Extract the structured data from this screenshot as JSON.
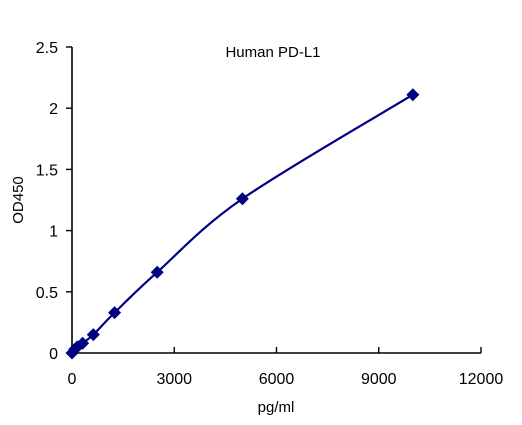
{
  "chart_data": {
    "type": "scatter",
    "title": "Human  PD-L1",
    "xlabel": "pg/ml",
    "ylabel": "OD450",
    "xlim": [
      0,
      12000
    ],
    "ylim": [
      0,
      2.5
    ],
    "x_ticks": [
      "0",
      "3000",
      "6000",
      "9000",
      "12000"
    ],
    "y_ticks": [
      "0",
      "0.5",
      "1",
      "1.5",
      "2",
      "2.5"
    ],
    "grid": false,
    "legend": "none",
    "series": [
      {
        "points": [
          {
            "x": 0,
            "y": 0.0
          },
          {
            "x": 78,
            "y": 0.03
          },
          {
            "x": 156,
            "y": 0.05
          },
          {
            "x": 312,
            "y": 0.08
          },
          {
            "x": 625,
            "y": 0.15
          },
          {
            "x": 1250,
            "y": 0.33
          },
          {
            "x": 2500,
            "y": 0.66
          },
          {
            "x": 5000,
            "y": 1.26
          },
          {
            "x": 10000,
            "y": 2.11
          }
        ],
        "marker": "diamond",
        "trendline": "smooth"
      }
    ],
    "color": "#000080"
  }
}
